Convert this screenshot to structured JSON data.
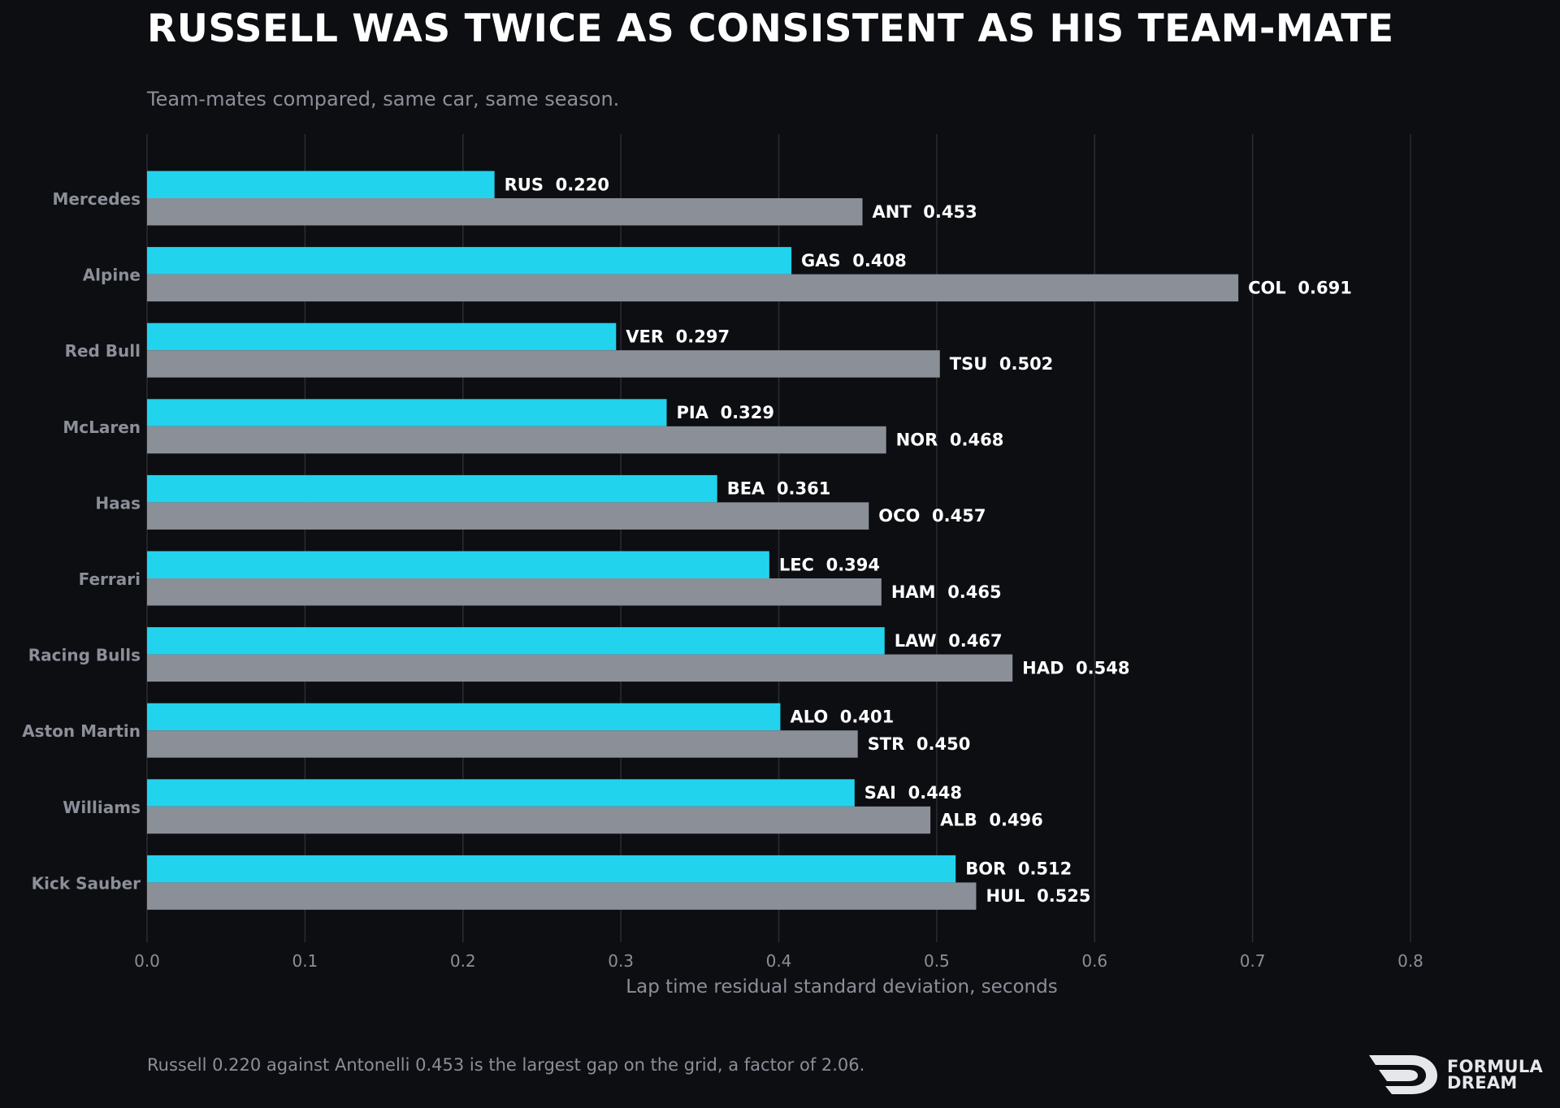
{
  "title": "RUSSELL WAS TWICE AS CONSISTENT AS HIS TEAM-MATE",
  "subtitle": "Team-mates compared, same car, same season.",
  "footnote": "Russell 0.220 against Antonelli 0.453 is the largest gap on the grid, a factor of 2.06.",
  "logo": {
    "line1": "FORMULA",
    "line2": "DREAM"
  },
  "colors": {
    "background": "#0d0e12",
    "driver_a": "#22d3ee",
    "driver_b": "#8b8f98",
    "grid": "#2a2c33",
    "label_muted": "#8b8f98",
    "value_label": "#ffffff"
  },
  "chart_data": {
    "type": "bar",
    "orientation": "horizontal",
    "xlabel": "Lap time residual standard deviation, seconds",
    "xlim": [
      0,
      0.8
    ],
    "xticks": [
      "0.0",
      "0.1",
      "0.2",
      "0.3",
      "0.4",
      "0.5",
      "0.6",
      "0.7",
      "0.8"
    ],
    "grid": true,
    "categories": [
      "Mercedes",
      "Alpine",
      "Red Bull",
      "McLaren",
      "Haas",
      "Ferrari",
      "Racing Bulls",
      "Aston Martin",
      "Williams",
      "Kick Sauber"
    ],
    "series": [
      {
        "drivers": [
          "RUS",
          "GAS",
          "VER",
          "PIA",
          "BEA",
          "LEC",
          "LAW",
          "ALO",
          "SAI",
          "BOR"
        ],
        "values": [
          0.22,
          0.408,
          0.297,
          0.329,
          0.361,
          0.394,
          0.467,
          0.401,
          0.448,
          0.512
        ],
        "labels": [
          "RUS  0.220",
          "GAS  0.408",
          "VER  0.297",
          "PIA  0.329",
          "BEA  0.361",
          "LEC  0.394",
          "LAW  0.467",
          "ALO  0.401",
          "SAI  0.448",
          "BOR  0.512"
        ]
      },
      {
        "drivers": [
          "ANT",
          "COL",
          "TSU",
          "NOR",
          "OCO",
          "HAM",
          "HAD",
          "STR",
          "ALB",
          "HUL"
        ],
        "values": [
          0.453,
          0.691,
          0.502,
          0.468,
          0.457,
          0.465,
          0.548,
          0.45,
          0.496,
          0.525
        ],
        "labels": [
          "ANT  0.453",
          "COL  0.691",
          "TSU  0.502",
          "NOR  0.468",
          "OCO  0.457",
          "HAM  0.465",
          "HAD  0.548",
          "STR  0.450",
          "ALB  0.496",
          "HUL  0.525"
        ]
      }
    ]
  }
}
